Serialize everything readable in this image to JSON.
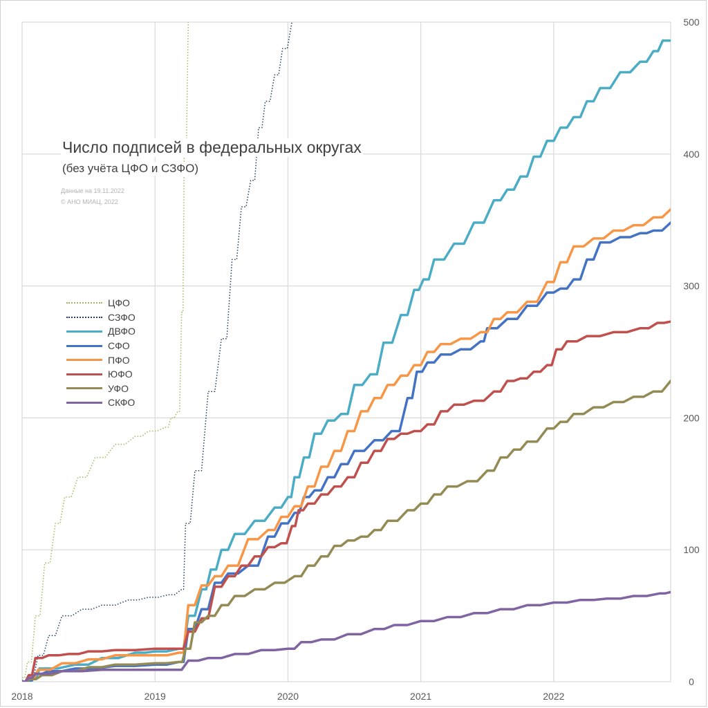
{
  "chart_data": {
    "type": "line",
    "title": "Число подписей в федеральных округах",
    "subtitle": "(без учёта ЦФО и СЗФО)",
    "notes": [
      "Данные на 19.11.2022",
      "© АНО МИАЦ, 2022"
    ],
    "xlabel": "",
    "ylabel": "",
    "x_ticks": [
      "2018",
      "2019",
      "2020",
      "2021",
      "2022"
    ],
    "y_ticks": [
      "0",
      "100",
      "200",
      "300",
      "400",
      "500"
    ],
    "xlim": [
      2018.0,
      2022.88
    ],
    "ylim": [
      0,
      500
    ],
    "y_axis_side": "right",
    "grid": true,
    "legend_position": "left",
    "series": [
      {
        "name": "ЦФО",
        "color": "#9bbb59",
        "style": "dotted",
        "width": 1.5,
        "points": [
          [
            2018.0,
            3
          ],
          [
            2018.04,
            15
          ],
          [
            2018.1,
            50
          ],
          [
            2018.17,
            90
          ],
          [
            2018.25,
            120
          ],
          [
            2018.32,
            140
          ],
          [
            2018.42,
            155
          ],
          [
            2018.55,
            170
          ],
          [
            2018.7,
            180
          ],
          [
            2018.85,
            186
          ],
          [
            2018.95,
            190
          ],
          [
            2019.08,
            193
          ],
          [
            2019.12,
            200
          ],
          [
            2019.17,
            205
          ],
          [
            2019.2,
            280
          ],
          [
            2019.22,
            400
          ],
          [
            2019.25,
            500
          ]
        ]
      },
      {
        "name": "СЗФО",
        "color": "#1f3864",
        "style": "dotted",
        "width": 1.5,
        "points": [
          [
            2018.0,
            1
          ],
          [
            2018.06,
            5
          ],
          [
            2018.12,
            20
          ],
          [
            2018.2,
            35
          ],
          [
            2018.3,
            50
          ],
          [
            2018.45,
            55
          ],
          [
            2018.6,
            58
          ],
          [
            2018.8,
            62
          ],
          [
            2018.95,
            64
          ],
          [
            2019.1,
            66
          ],
          [
            2019.2,
            70
          ],
          [
            2019.23,
            120
          ],
          [
            2019.3,
            160
          ],
          [
            2019.4,
            220
          ],
          [
            2019.5,
            260
          ],
          [
            2019.58,
            320
          ],
          [
            2019.65,
            360
          ],
          [
            2019.72,
            380
          ],
          [
            2019.78,
            420
          ],
          [
            2019.83,
            440
          ],
          [
            2019.9,
            460
          ],
          [
            2019.96,
            480
          ],
          [
            2020.03,
            500
          ]
        ]
      },
      {
        "name": "ДВФО",
        "color": "#4bacc6",
        "style": "solid",
        "width": 3.5,
        "points": [
          [
            2018.0,
            0
          ],
          [
            2018.08,
            2
          ],
          [
            2018.13,
            10
          ],
          [
            2018.4,
            13
          ],
          [
            2018.6,
            18
          ],
          [
            2018.85,
            22
          ],
          [
            2019.0,
            23
          ],
          [
            2019.18,
            25
          ],
          [
            2019.25,
            50
          ],
          [
            2019.35,
            70
          ],
          [
            2019.42,
            85
          ],
          [
            2019.5,
            100
          ],
          [
            2019.6,
            112
          ],
          [
            2019.75,
            122
          ],
          [
            2019.9,
            132
          ],
          [
            2020.0,
            140
          ],
          [
            2020.05,
            155
          ],
          [
            2020.12,
            170
          ],
          [
            2020.2,
            188
          ],
          [
            2020.3,
            198
          ],
          [
            2020.4,
            203
          ],
          [
            2020.5,
            225
          ],
          [
            2020.62,
            233
          ],
          [
            2020.72,
            257
          ],
          [
            2020.85,
            278
          ],
          [
            2020.95,
            297
          ],
          [
            2021.02,
            305
          ],
          [
            2021.1,
            320
          ],
          [
            2021.25,
            332
          ],
          [
            2021.4,
            348
          ],
          [
            2021.55,
            365
          ],
          [
            2021.65,
            373
          ],
          [
            2021.75,
            383
          ],
          [
            2021.85,
            398
          ],
          [
            2021.95,
            410
          ],
          [
            2022.05,
            420
          ],
          [
            2022.15,
            428
          ],
          [
            2022.25,
            440
          ],
          [
            2022.35,
            450
          ],
          [
            2022.5,
            462
          ],
          [
            2022.65,
            470
          ],
          [
            2022.75,
            478
          ],
          [
            2022.82,
            486
          ],
          [
            2022.88,
            486
          ]
        ]
      },
      {
        "name": "СФО",
        "color": "#4472c4",
        "style": "solid",
        "width": 3.5,
        "points": [
          [
            2018.0,
            0
          ],
          [
            2018.05,
            1
          ],
          [
            2018.1,
            6
          ],
          [
            2018.2,
            8
          ],
          [
            2018.4,
            10
          ],
          [
            2018.7,
            12
          ],
          [
            2019.0,
            13
          ],
          [
            2019.18,
            15
          ],
          [
            2019.25,
            40
          ],
          [
            2019.35,
            55
          ],
          [
            2019.45,
            75
          ],
          [
            2019.55,
            82
          ],
          [
            2019.7,
            88
          ],
          [
            2019.85,
            110
          ],
          [
            2019.95,
            120
          ],
          [
            2020.05,
            128
          ],
          [
            2020.12,
            140
          ],
          [
            2020.2,
            145
          ],
          [
            2020.3,
            155
          ],
          [
            2020.4,
            165
          ],
          [
            2020.5,
            175
          ],
          [
            2020.65,
            183
          ],
          [
            2020.78,
            190
          ],
          [
            2020.9,
            215
          ],
          [
            2020.97,
            235
          ],
          [
            2021.05,
            242
          ],
          [
            2021.15,
            248
          ],
          [
            2021.3,
            252
          ],
          [
            2021.45,
            258
          ],
          [
            2021.5,
            268
          ],
          [
            2021.65,
            275
          ],
          [
            2021.8,
            285
          ],
          [
            2021.95,
            295
          ],
          [
            2022.05,
            298
          ],
          [
            2022.15,
            305
          ],
          [
            2022.25,
            320
          ],
          [
            2022.35,
            333
          ],
          [
            2022.5,
            337
          ],
          [
            2022.65,
            340
          ],
          [
            2022.75,
            342
          ],
          [
            2022.88,
            348
          ]
        ]
      },
      {
        "name": "ПФО",
        "color": "#f79646",
        "style": "solid",
        "width": 3.5,
        "points": [
          [
            2018.0,
            0
          ],
          [
            2018.05,
            2
          ],
          [
            2018.12,
            9
          ],
          [
            2018.3,
            14
          ],
          [
            2018.5,
            17
          ],
          [
            2018.7,
            20
          ],
          [
            2019.0,
            20
          ],
          [
            2019.18,
            22
          ],
          [
            2019.25,
            58
          ],
          [
            2019.35,
            73
          ],
          [
            2019.45,
            80
          ],
          [
            2019.55,
            88
          ],
          [
            2019.7,
            108
          ],
          [
            2019.85,
            115
          ],
          [
            2019.95,
            125
          ],
          [
            2020.05,
            133
          ],
          [
            2020.15,
            148
          ],
          [
            2020.25,
            163
          ],
          [
            2020.35,
            175
          ],
          [
            2020.45,
            190
          ],
          [
            2020.55,
            205
          ],
          [
            2020.65,
            215
          ],
          [
            2020.75,
            225
          ],
          [
            2020.85,
            232
          ],
          [
            2020.95,
            240
          ],
          [
            2021.05,
            250
          ],
          [
            2021.15,
            256
          ],
          [
            2021.3,
            260
          ],
          [
            2021.45,
            265
          ],
          [
            2021.55,
            275
          ],
          [
            2021.65,
            280
          ],
          [
            2021.8,
            288
          ],
          [
            2021.95,
            303
          ],
          [
            2022.05,
            318
          ],
          [
            2022.15,
            330
          ],
          [
            2022.3,
            336
          ],
          [
            2022.45,
            342
          ],
          [
            2022.6,
            346
          ],
          [
            2022.75,
            352
          ],
          [
            2022.88,
            358
          ]
        ]
      },
      {
        "name": "ЮФО",
        "color": "#c0504d",
        "style": "solid",
        "width": 3.5,
        "points": [
          [
            2018.0,
            0
          ],
          [
            2018.05,
            5
          ],
          [
            2018.1,
            18
          ],
          [
            2018.2,
            20
          ],
          [
            2018.35,
            21
          ],
          [
            2018.5,
            23
          ],
          [
            2018.7,
            24
          ],
          [
            2019.0,
            25
          ],
          [
            2019.18,
            25
          ],
          [
            2019.25,
            38
          ],
          [
            2019.35,
            48
          ],
          [
            2019.45,
            72
          ],
          [
            2019.55,
            80
          ],
          [
            2019.65,
            88
          ],
          [
            2019.75,
            95
          ],
          [
            2019.85,
            102
          ],
          [
            2019.95,
            105
          ],
          [
            2020.03,
            118
          ],
          [
            2020.08,
            130
          ],
          [
            2020.15,
            135
          ],
          [
            2020.25,
            142
          ],
          [
            2020.35,
            148
          ],
          [
            2020.45,
            155
          ],
          [
            2020.55,
            166
          ],
          [
            2020.65,
            175
          ],
          [
            2020.75,
            184
          ],
          [
            2020.85,
            188
          ],
          [
            2020.95,
            190
          ],
          [
            2021.05,
            195
          ],
          [
            2021.15,
            205
          ],
          [
            2021.25,
            210
          ],
          [
            2021.4,
            213
          ],
          [
            2021.55,
            220
          ],
          [
            2021.65,
            228
          ],
          [
            2021.75,
            230
          ],
          [
            2021.85,
            235
          ],
          [
            2021.95,
            240
          ],
          [
            2022.02,
            252
          ],
          [
            2022.1,
            258
          ],
          [
            2022.25,
            262
          ],
          [
            2022.45,
            265
          ],
          [
            2022.65,
            268
          ],
          [
            2022.78,
            272
          ],
          [
            2022.88,
            273
          ]
        ]
      },
      {
        "name": "УФО",
        "color": "#948a54",
        "style": "solid",
        "width": 3.5,
        "points": [
          [
            2018.0,
            0
          ],
          [
            2018.06,
            2
          ],
          [
            2018.15,
            5
          ],
          [
            2018.3,
            8
          ],
          [
            2018.5,
            11
          ],
          [
            2018.7,
            13
          ],
          [
            2019.0,
            14
          ],
          [
            2019.18,
            15
          ],
          [
            2019.23,
            25
          ],
          [
            2019.3,
            45
          ],
          [
            2019.4,
            50
          ],
          [
            2019.5,
            58
          ],
          [
            2019.6,
            65
          ],
          [
            2019.75,
            70
          ],
          [
            2019.9,
            75
          ],
          [
            2020.05,
            80
          ],
          [
            2020.15,
            88
          ],
          [
            2020.25,
            95
          ],
          [
            2020.35,
            103
          ],
          [
            2020.45,
            107
          ],
          [
            2020.55,
            110
          ],
          [
            2020.65,
            115
          ],
          [
            2020.75,
            122
          ],
          [
            2020.9,
            130
          ],
          [
            2021.0,
            135
          ],
          [
            2021.1,
            142
          ],
          [
            2021.2,
            148
          ],
          [
            2021.35,
            152
          ],
          [
            2021.5,
            160
          ],
          [
            2021.6,
            170
          ],
          [
            2021.7,
            176
          ],
          [
            2021.8,
            182
          ],
          [
            2021.95,
            192
          ],
          [
            2022.05,
            197
          ],
          [
            2022.15,
            203
          ],
          [
            2022.3,
            208
          ],
          [
            2022.45,
            212
          ],
          [
            2022.6,
            216
          ],
          [
            2022.75,
            220
          ],
          [
            2022.88,
            228
          ]
        ]
      },
      {
        "name": "СКФО",
        "color": "#8064a2",
        "style": "solid",
        "width": 3.5,
        "points": [
          [
            2018.0,
            0
          ],
          [
            2018.05,
            3
          ],
          [
            2018.1,
            6
          ],
          [
            2018.3,
            8
          ],
          [
            2018.6,
            9
          ],
          [
            2018.9,
            9
          ],
          [
            2019.15,
            9
          ],
          [
            2019.25,
            16
          ],
          [
            2019.4,
            18
          ],
          [
            2019.6,
            21
          ],
          [
            2019.8,
            24
          ],
          [
            2020.0,
            25
          ],
          [
            2020.1,
            30
          ],
          [
            2020.25,
            32
          ],
          [
            2020.45,
            36
          ],
          [
            2020.65,
            40
          ],
          [
            2020.8,
            43
          ],
          [
            2021.0,
            46
          ],
          [
            2021.2,
            49
          ],
          [
            2021.4,
            52
          ],
          [
            2021.6,
            55
          ],
          [
            2021.8,
            58
          ],
          [
            2022.0,
            60
          ],
          [
            2022.2,
            62
          ],
          [
            2022.4,
            63
          ],
          [
            2022.6,
            65
          ],
          [
            2022.8,
            67
          ],
          [
            2022.88,
            68
          ]
        ]
      }
    ]
  }
}
